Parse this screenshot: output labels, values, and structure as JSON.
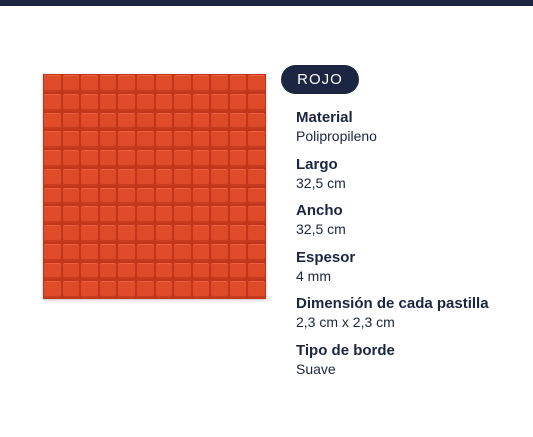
{
  "color_label": "ROJO",
  "specs": [
    {
      "label": "Material",
      "value": "Polipropileno"
    },
    {
      "label": "Largo",
      "value": "32,5 cm"
    },
    {
      "label": "Ancho",
      "value": "32,5 cm"
    },
    {
      "label": "Espesor",
      "value": "4 mm"
    },
    {
      "label": "Dimensión de cada pastilla",
      "value": "2,3 cm x 2,3 cm"
    },
    {
      "label": "Tipo de borde",
      "value": "Suave"
    }
  ],
  "colors": {
    "navy": "#1c2541",
    "tile_red": "#dd4a28"
  }
}
